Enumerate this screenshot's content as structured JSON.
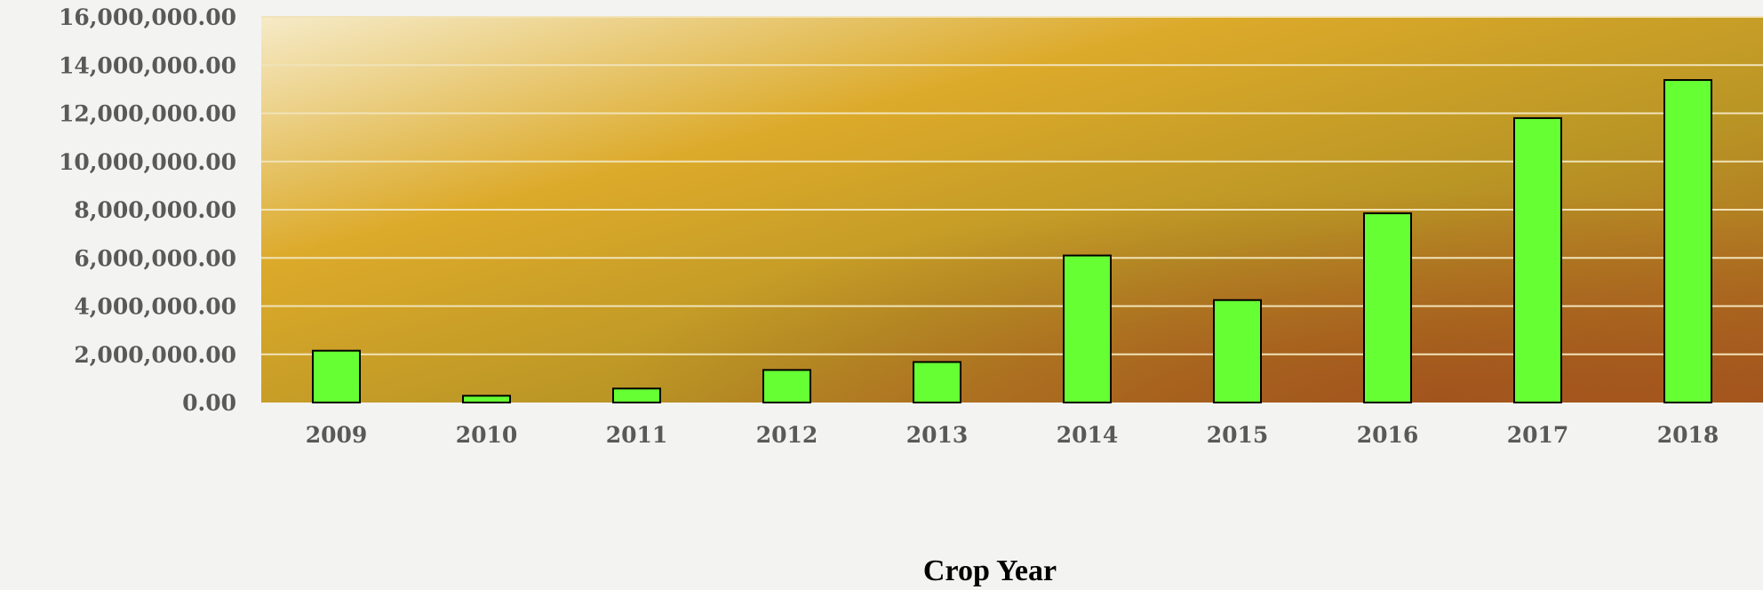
{
  "chart_data": {
    "type": "bar",
    "title": "",
    "xlabel": "Crop Year",
    "ylabel": "",
    "categories": [
      "2009",
      "2010",
      "2011",
      "2012",
      "2013",
      "2014",
      "2015",
      "2016",
      "2017",
      "2018"
    ],
    "series": [
      {
        "values": [
          2150000,
          280000,
          580000,
          1350000,
          1680000,
          6100000,
          4250000,
          7850000,
          11800000,
          13380000
        ]
      }
    ],
    "ylim": [
      0,
      16000000
    ],
    "yticks": [
      {
        "value": 0,
        "label": "0.00"
      },
      {
        "value": 2000000,
        "label": "2,000,000.00"
      },
      {
        "value": 4000000,
        "label": "4,000,000.00"
      },
      {
        "value": 6000000,
        "label": "6,000,000.00"
      },
      {
        "value": 8000000,
        "label": "8,000,000.00"
      },
      {
        "value": 10000000,
        "label": "10,000,000.00"
      },
      {
        "value": 12000000,
        "label": "12,000,000.00"
      },
      {
        "value": 14000000,
        "label": "14,000,000.00"
      },
      {
        "value": 16000000,
        "label": "16,000,000.00"
      }
    ],
    "grid": true,
    "legend": "none",
    "colors": {
      "bar_fill": "#66ff33",
      "bar_stroke": "#000000",
      "gridline": "#f1e3b8",
      "plot_gradient": [
        "#f6ebc8",
        "#dcaa2a",
        "#b99525",
        "#a85a1e"
      ]
    }
  }
}
